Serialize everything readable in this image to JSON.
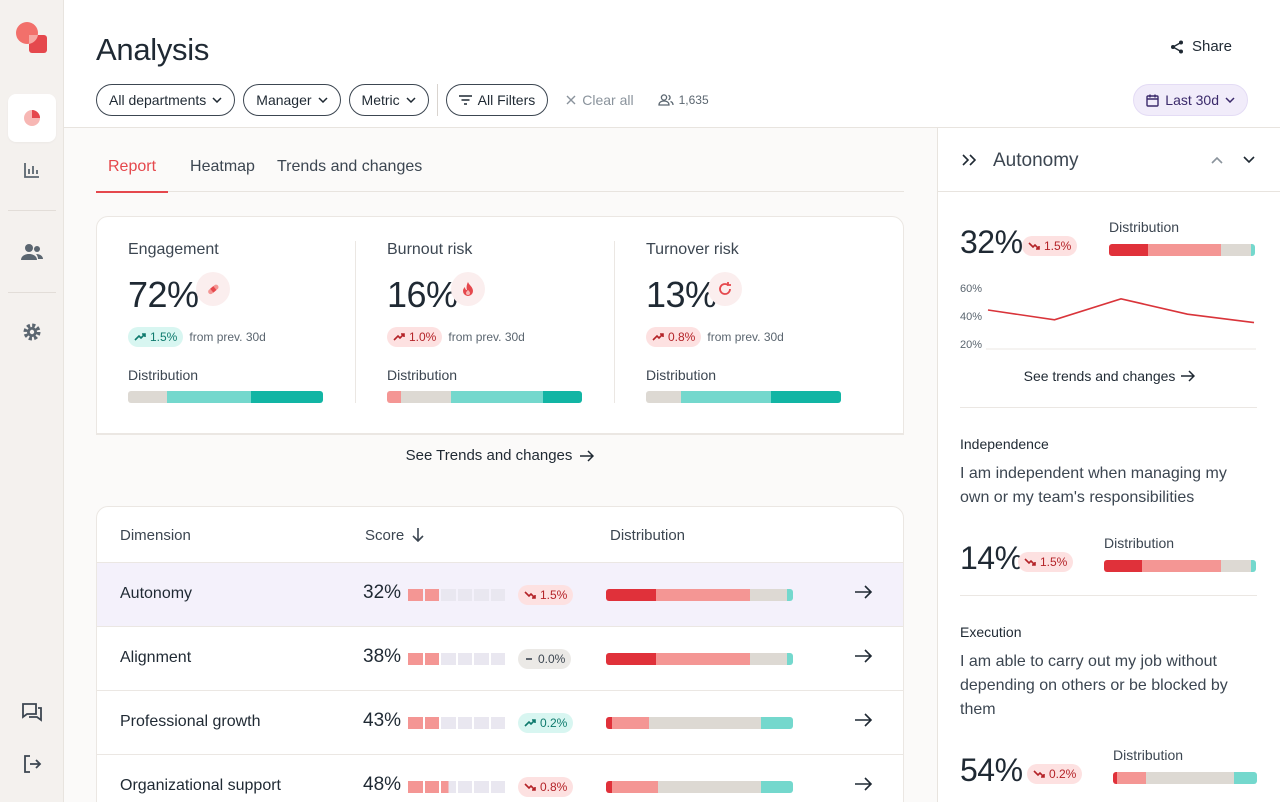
{
  "page": {
    "title": "Analysis",
    "share_label": "Share"
  },
  "filters": {
    "departments": "All departments",
    "manager": "Manager",
    "metric": "Metric",
    "all_filters": "All Filters",
    "clear_all": "Clear all",
    "people_count": "1,635",
    "date_range": "Last 30d"
  },
  "tabs": [
    "Report",
    "Heatmap",
    "Trends and changes"
  ],
  "kpis": [
    {
      "label": "Engagement",
      "value": "72%",
      "delta": "1.5%",
      "delta_note": "from prev. 30d",
      "dist_label": "Distribution",
      "distribution": [
        {
          "share": 20,
          "color": "#ddd9d3"
        },
        {
          "share": 43,
          "color": "#74d8cd"
        },
        {
          "share": 37,
          "color": "#12b5a4"
        }
      ]
    },
    {
      "label": "Burnout risk",
      "value": "16%",
      "delta": "1.0%",
      "delta_note": "from prev. 30d",
      "dist_label": "Distribution",
      "distribution": [
        {
          "share": 7,
          "color": "#f49694"
        },
        {
          "share": 26,
          "color": "#ddd9d3"
        },
        {
          "share": 47,
          "color": "#74d8cd"
        },
        {
          "share": 20,
          "color": "#12b5a4"
        }
      ]
    },
    {
      "label": "Turnover risk",
      "value": "13%",
      "delta": "0.8%",
      "delta_note": "from prev. 30d",
      "dist_label": "Distribution",
      "distribution": [
        {
          "share": 18,
          "color": "#ddd9d3"
        },
        {
          "share": 46,
          "color": "#74d8cd"
        },
        {
          "share": 36,
          "color": "#12b5a4"
        }
      ]
    }
  ],
  "see_trends": "See Trends and changes",
  "table": {
    "headers": {
      "dimension": "Dimension",
      "score": "Score",
      "distribution": "Distribution"
    },
    "rows": [
      {
        "dimension": "Autonomy",
        "score": "32%",
        "segments_on": 2.0,
        "delta": "1.5%",
        "trend": "down-bad",
        "distribution": [
          {
            "share": 27,
            "color": "#e0313a"
          },
          {
            "share": 50,
            "color": "#f49694"
          },
          {
            "share": 20,
            "color": "#ddd9d3"
          },
          {
            "share": 3,
            "color": "#74d8cd"
          }
        ]
      },
      {
        "dimension": "Alignment",
        "score": "38%",
        "segments_on": 2.0,
        "delta": "0.0%",
        "trend": "neutral",
        "distribution": [
          {
            "share": 27,
            "color": "#e0313a"
          },
          {
            "share": 50,
            "color": "#f49694"
          },
          {
            "share": 20,
            "color": "#ddd9d3"
          },
          {
            "share": 3,
            "color": "#74d8cd"
          }
        ]
      },
      {
        "dimension": "Professional growth",
        "score": "43%",
        "segments_on": 2.0,
        "delta": "0.2%",
        "trend": "up-good",
        "distribution": [
          {
            "share": 3,
            "color": "#e0313a"
          },
          {
            "share": 20,
            "color": "#f49694"
          },
          {
            "share": 60,
            "color": "#ddd9d3"
          },
          {
            "share": 17,
            "color": "#74d8cd"
          }
        ]
      },
      {
        "dimension": "Organizational support",
        "score": "48%",
        "segments_on": 2.5,
        "delta": "0.8%",
        "trend": "down-bad",
        "distribution": [
          {
            "share": 3,
            "color": "#e0313a"
          },
          {
            "share": 25,
            "color": "#f49694"
          },
          {
            "share": 55,
            "color": "#ddd9d3"
          },
          {
            "share": 17,
            "color": "#74d8cd"
          }
        ]
      }
    ]
  },
  "panel": {
    "title": "Autonomy",
    "score": "32%",
    "delta": "1.5%",
    "dist_label": "Distribution",
    "distribution": [
      {
        "share": 27,
        "color": "#e0313a"
      },
      {
        "share": 50,
        "color": "#f49694"
      },
      {
        "share": 20,
        "color": "#ddd9d3"
      },
      {
        "share": 3,
        "color": "#74d8cd"
      }
    ],
    "chart_data": {
      "type": "line",
      "ticks": [
        "60%",
        "40%",
        "20%"
      ],
      "ylim": [
        20,
        60
      ],
      "values": [
        45,
        38,
        53,
        42,
        36
      ]
    },
    "see_trends": "See trends and changes",
    "items": [
      {
        "name": "Independence",
        "question": "I am independent when managing my own or my team's responsibilities",
        "score": "14%",
        "delta": "1.5%",
        "dist_label": "Distribution",
        "distribution": [
          {
            "share": 25,
            "color": "#e0313a"
          },
          {
            "share": 52,
            "color": "#f49694"
          },
          {
            "share": 20,
            "color": "#ddd9d3"
          },
          {
            "share": 3,
            "color": "#74d8cd"
          }
        ]
      },
      {
        "name": "Execution",
        "question": "I am able to carry out my job without depending on others or be blocked by them",
        "score": "54%",
        "delta": "0.2%",
        "dist_label": "Distribution",
        "distribution": [
          {
            "share": 3,
            "color": "#e0313a"
          },
          {
            "share": 20,
            "color": "#f49694"
          },
          {
            "share": 61,
            "color": "#ddd9d3"
          },
          {
            "share": 16,
            "color": "#74d8cd"
          }
        ]
      }
    ]
  }
}
